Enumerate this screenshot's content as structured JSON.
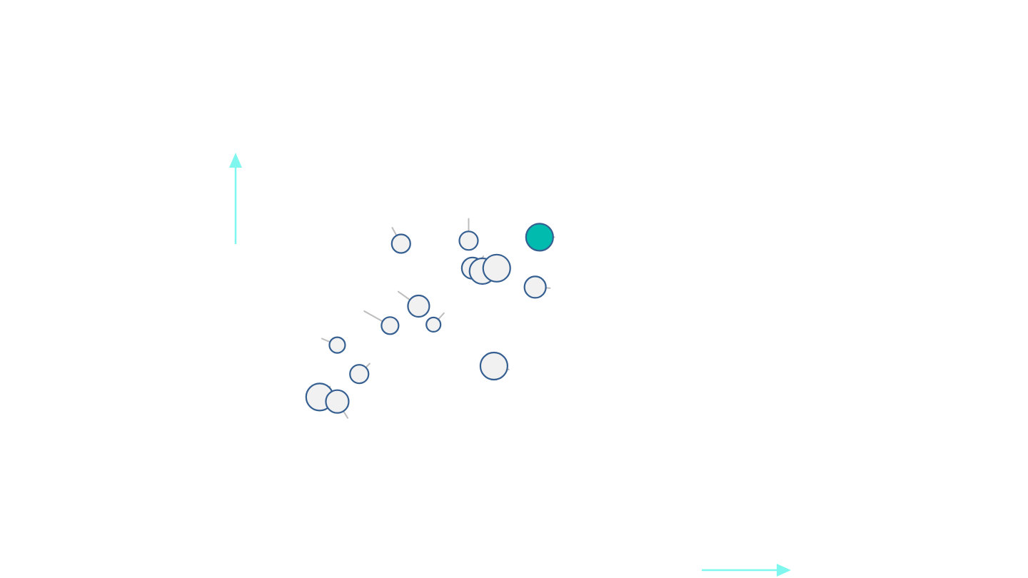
{
  "chart_data": {
    "type": "scatter",
    "title": "",
    "xlabel": "",
    "ylabel": "",
    "xlim": [
      0,
      100
    ],
    "ylim": [
      0,
      100
    ],
    "grid": false,
    "legend": "none",
    "colors": {
      "default_fill": "#f1f1f1",
      "stroke": "#355f91",
      "highlight_fill": "#00bbae",
      "tail": "#bdbdbd",
      "axis_arrow": "#7ff7ef"
    },
    "points": [
      {
        "x": 30.1,
        "y": 65.5,
        "size": 13,
        "trail": [
          -1.6,
          3.2
        ],
        "highlight": false
      },
      {
        "x": 42.4,
        "y": 66.1,
        "size": 13,
        "trail": [
          0,
          4.4
        ],
        "highlight": false
      },
      {
        "x": 55.3,
        "y": 66.8,
        "size": 19,
        "trail": [
          2.7,
          0
        ],
        "highlight": true
      },
      {
        "x": 43.1,
        "y": 60.6,
        "size": 15,
        "trail": [
          2.0,
          2.4
        ],
        "highlight": false
      },
      {
        "x": 44.9,
        "y": 60.0,
        "size": 18,
        "trail": [
          0,
          0
        ],
        "highlight": false
      },
      {
        "x": 47.5,
        "y": 60.6,
        "size": 19,
        "trail": [
          0,
          0
        ],
        "highlight": false
      },
      {
        "x": 54.5,
        "y": 56.8,
        "size": 15,
        "trail": [
          2.7,
          -0.2
        ],
        "highlight": false
      },
      {
        "x": 33.3,
        "y": 53.0,
        "size": 15,
        "trail": [
          -3.7,
          2.9
        ],
        "highlight": false
      },
      {
        "x": 28.1,
        "y": 49.1,
        "size": 12,
        "trail": [
          -4.7,
          2.9
        ],
        "highlight": false
      },
      {
        "x": 36.0,
        "y": 49.3,
        "size": 10,
        "trail": [
          1.9,
          2.3
        ],
        "highlight": false
      },
      {
        "x": 18.5,
        "y": 45.2,
        "size": 11,
        "trail": [
          -2.8,
          1.3
        ],
        "highlight": false
      },
      {
        "x": 47.0,
        "y": 41.0,
        "size": 19,
        "trail": [
          2.7,
          -0.7
        ],
        "highlight": false
      },
      {
        "x": 22.5,
        "y": 39.4,
        "size": 13,
        "trail": [
          1.9,
          2.1
        ],
        "highlight": false
      },
      {
        "x": 15.3,
        "y": 34.8,
        "size": 19,
        "trail": [
          1.9,
          2.1
        ],
        "highlight": false
      },
      {
        "x": 18.5,
        "y": 33.9,
        "size": 16,
        "trail": [
          1.9,
          -3.3
        ],
        "highlight": false
      }
    ]
  }
}
